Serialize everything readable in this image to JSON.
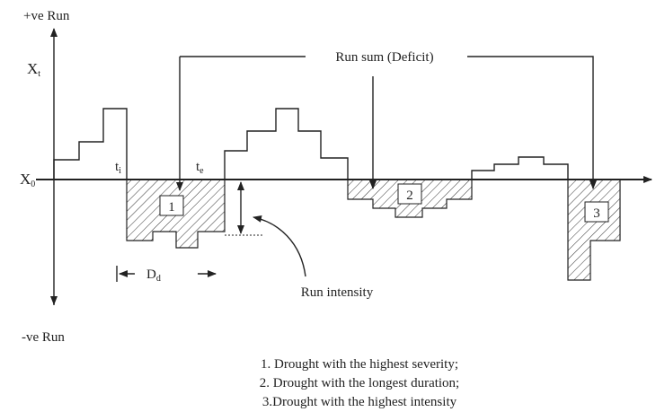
{
  "axis": {
    "positive": "+ve Run",
    "negative": "-ve Run",
    "xt": {
      "text": "X",
      "sub": "t"
    },
    "x0": {
      "text": "X",
      "sub": "0"
    }
  },
  "markers": {
    "ti": {
      "text": "t",
      "sub": "i"
    },
    "te": {
      "text": "t",
      "sub": "e"
    },
    "dd": {
      "text": "D",
      "sub": "d"
    }
  },
  "run_sum_label": "Run sum (Deficit)",
  "run_intensity_label": "Run intensity",
  "droughts": [
    "1",
    "2",
    "3"
  ],
  "legend": [
    "1. Drought with the highest severity;",
    "2. Drought with the longest duration;",
    "3.Drought with the highest intensity"
  ]
}
